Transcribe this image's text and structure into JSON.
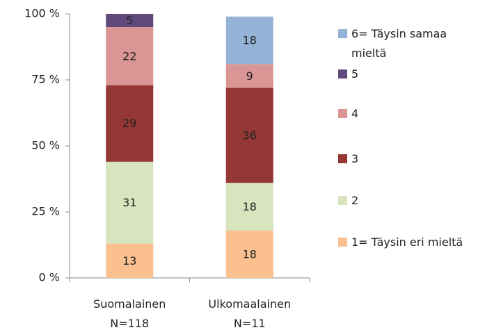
{
  "chart_data": {
    "type": "stacked_bar",
    "categories": [
      [
        "Suomalainen",
        "N=118"
      ],
      [
        "Ulkomaalainen",
        "N=11"
      ]
    ],
    "series": [
      {
        "name": "1= Täysin eri mieltä",
        "color": "#fac090",
        "values": [
          13,
          18
        ]
      },
      {
        "name": "2",
        "color": "#d7e4bd",
        "values": [
          31,
          18
        ]
      },
      {
        "name": "3",
        "color": "#953735",
        "values": [
          29,
          36
        ]
      },
      {
        "name": "4",
        "color": "#d99694",
        "values": [
          22,
          9
        ]
      },
      {
        "name": "5",
        "color": "#604a7b",
        "values": [
          5,
          null
        ]
      },
      {
        "name": "6= Täysin samaa mieltä",
        "color": "#95b3d7",
        "values": [
          null,
          18
        ]
      }
    ],
    "ylim": [
      0,
      100
    ],
    "yticks": [
      {
        "value": 0,
        "label": "0 %"
      },
      {
        "value": 25,
        "label": "25 %"
      },
      {
        "value": 50,
        "label": "50 %"
      },
      {
        "value": 75,
        "label": "75 %"
      },
      {
        "value": 100,
        "label": "100 %"
      }
    ],
    "legend": "right"
  }
}
